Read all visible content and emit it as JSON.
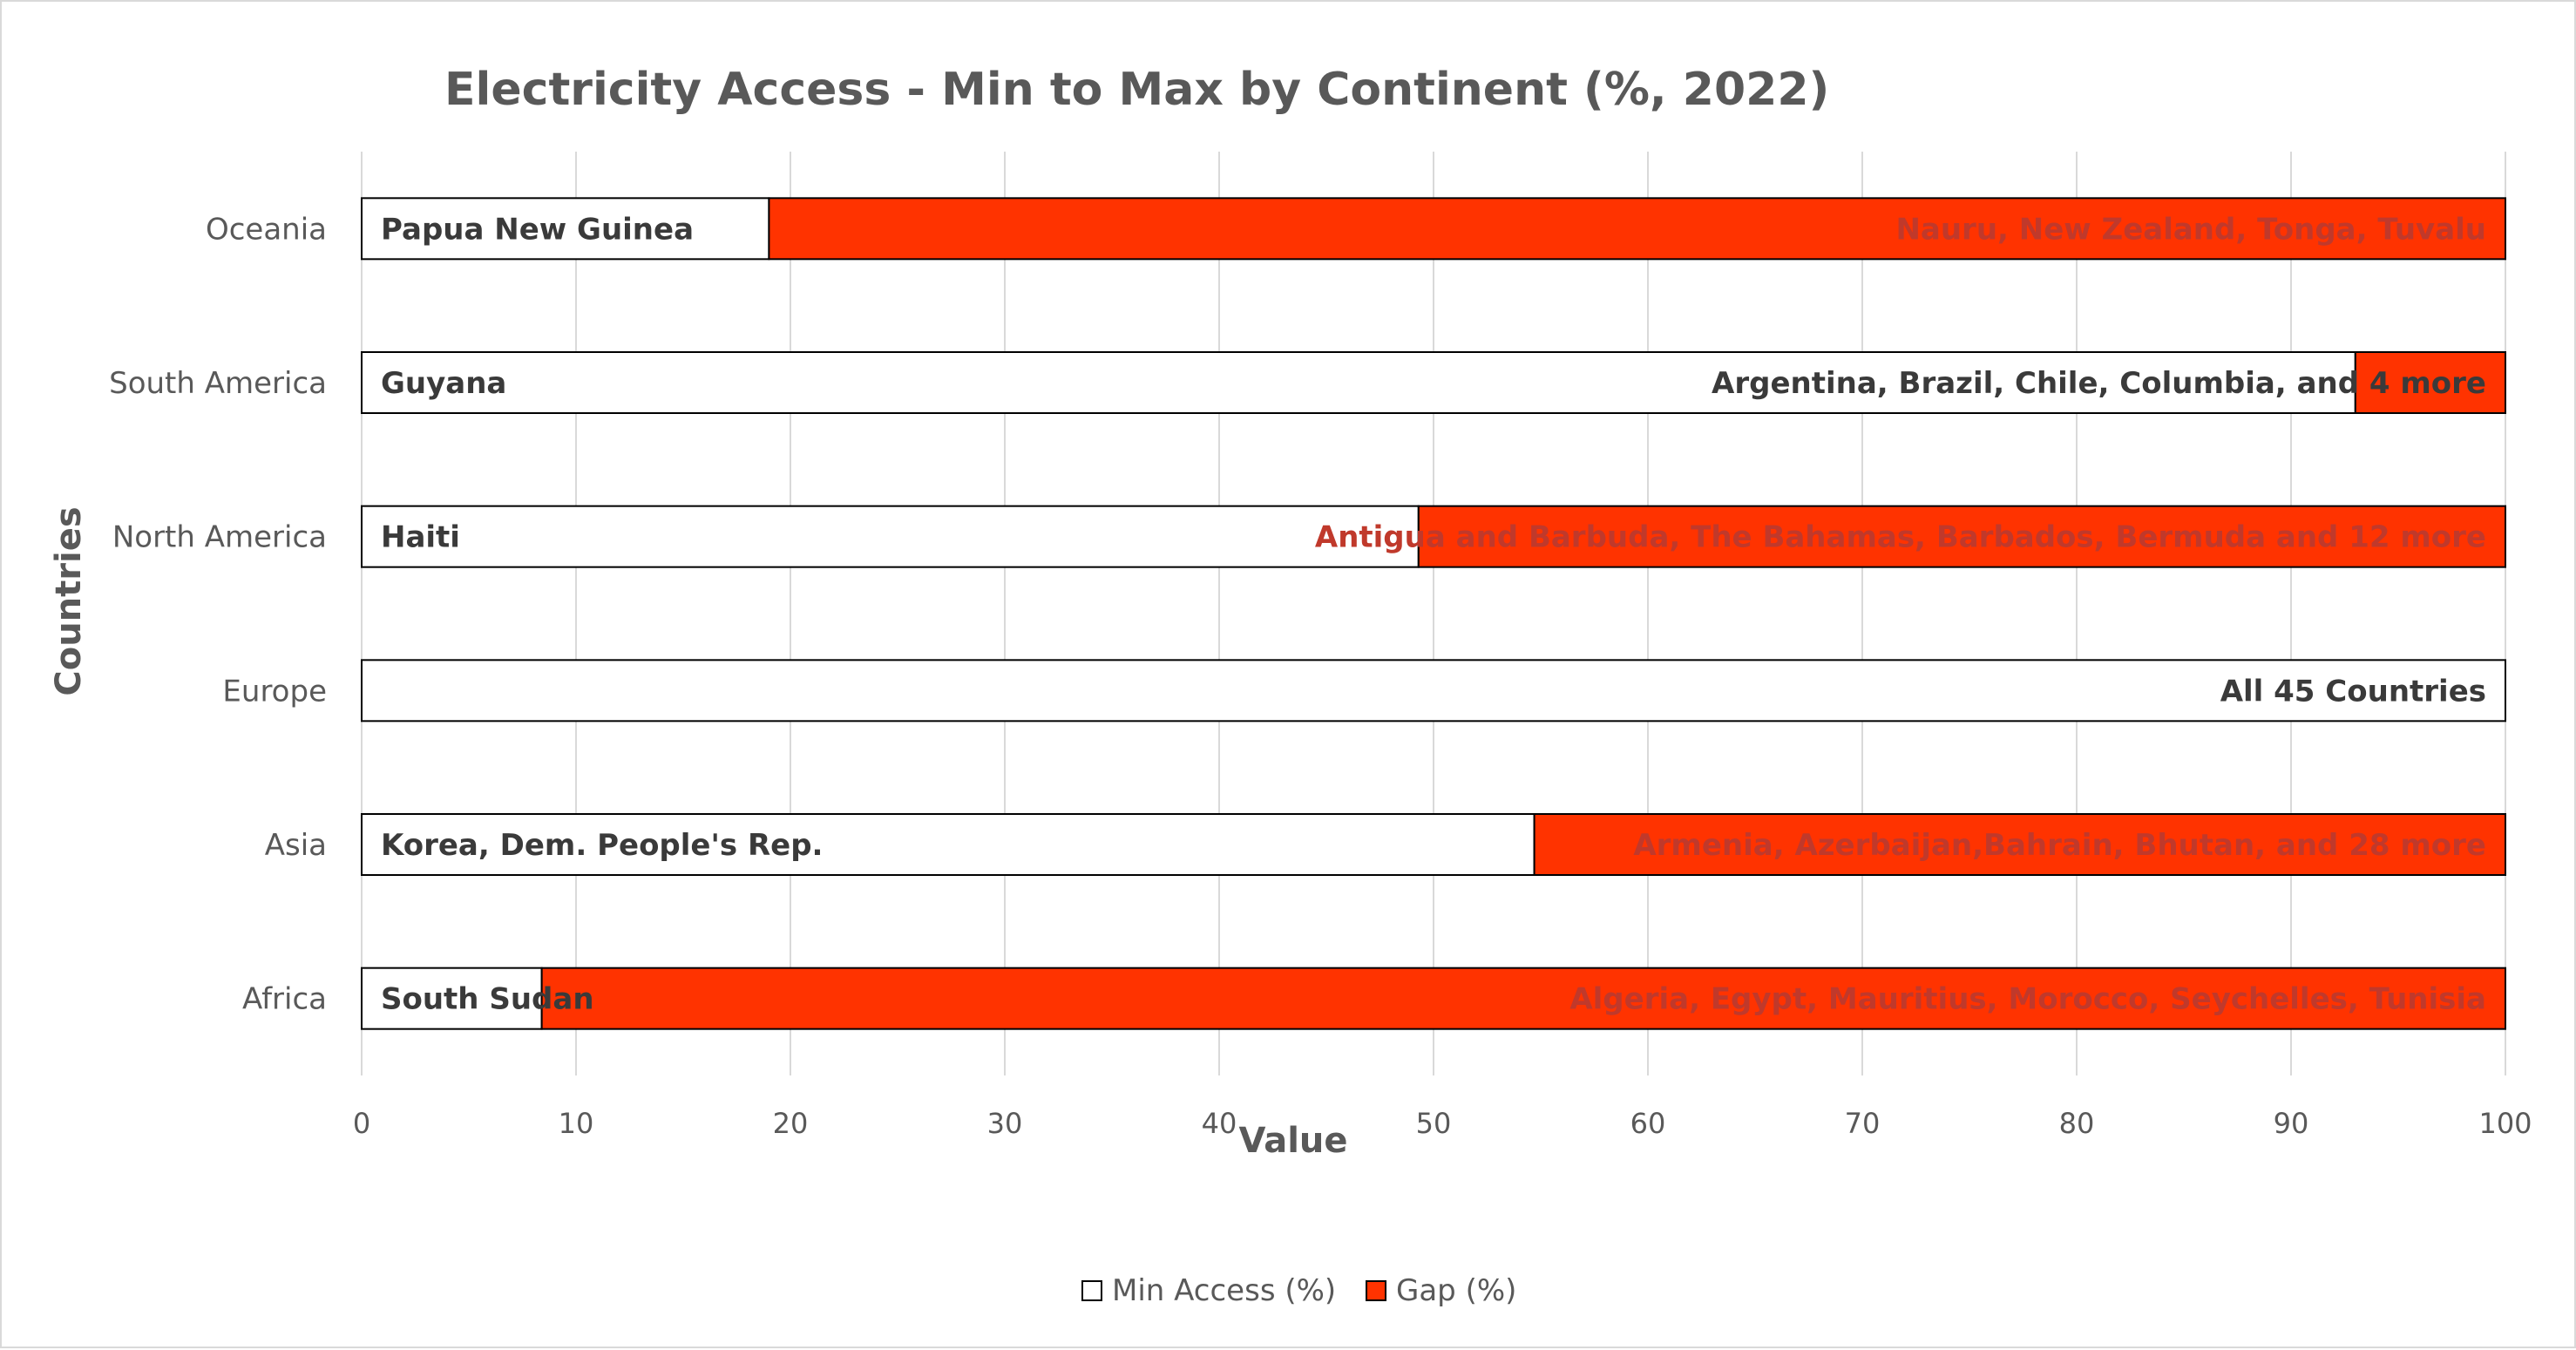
{
  "chart_data": {
    "type": "bar",
    "orientation": "horizontal",
    "stacked": true,
    "title": "Electricity Access - Min to Max by Continent (%, 2022)",
    "xlabel": "Value",
    "ylabel": "Countries",
    "xlim": [
      0,
      100
    ],
    "xticks": [
      0,
      10,
      20,
      30,
      40,
      50,
      60,
      70,
      80,
      90,
      100
    ],
    "grid": "vertical",
    "legend_position": "bottom",
    "categories": [
      "Oceania",
      "South America",
      "North America",
      "Europe",
      "Asia",
      "Africa"
    ],
    "series": [
      {
        "name": "Min Access (%)",
        "color": "#ffffff",
        "values": [
          19,
          93,
          49.3,
          100,
          54.7,
          8.4
        ]
      },
      {
        "name": "Gap (%)",
        "color": "#ff3300",
        "values": [
          81,
          7,
          50.7,
          0,
          45.3,
          91.6
        ]
      }
    ],
    "min_country_labels": [
      "Papua New Guinea",
      "Guyana",
      "Haiti",
      "",
      "Korea, Dem. People's Rep.",
      "South Sudan"
    ],
    "max_country_labels": [
      "Nauru, New Zealand, Tonga, Tuvalu",
      "Argentina, Brazil, Chile, Columbia, and 4 more",
      "Antigua and Barbuda, The Bahamas,  Barbados, Bermuda and 12 more",
      "All 45 Countries",
      "Armenia, Azerbaijan,Bahrain, Bhutan, and 28 more",
      "Algeria, Egypt, Mauritius, Morocco, Seychelles, Tunisia"
    ]
  }
}
